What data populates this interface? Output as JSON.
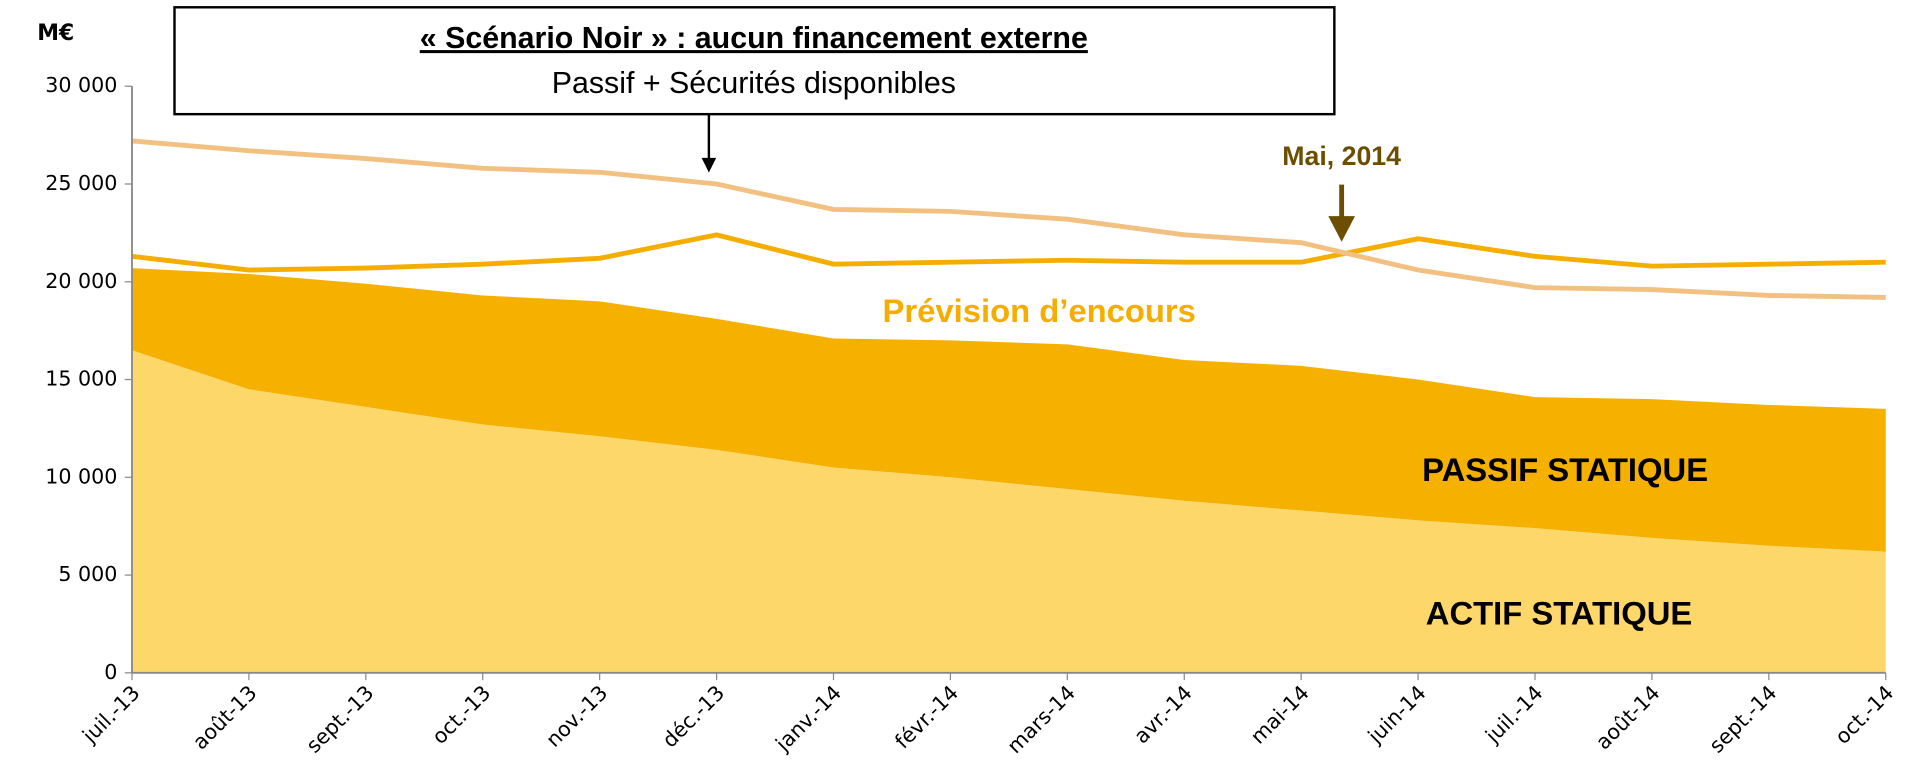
{
  "chart_data": {
    "type": "area",
    "title": "« Scénario  Noir » : aucun financement externe",
    "y_label": "M€",
    "categories": [
      "juil.-13",
      "août-13",
      "sept.-13",
      "oct.-13",
      "nov.-13",
      "déc.-13",
      "janv.-14",
      "févr.-14",
      "mars-14",
      "avr.-14",
      "mai-14",
      "juin-14",
      "juil.-14",
      "août-14",
      "sept.-14",
      "oct.-14"
    ],
    "stacked": true,
    "series": [
      {
        "name": "ACTIF STATIQUE",
        "type": "area",
        "color": "#fdd76a",
        "values": [
          16500,
          14500,
          13600,
          12700,
          12100,
          11400,
          10500,
          10000,
          9400,
          8800,
          8300,
          7800,
          7400,
          6900,
          6500,
          6200
        ]
      },
      {
        "name": "PASSIF STATIQUE",
        "type": "area",
        "color": "#f5b000",
        "values": [
          4200,
          5900,
          6300,
          6600,
          6900,
          6700,
          6600,
          7000,
          7400,
          7200,
          7400,
          7200,
          6700,
          7100,
          7200,
          7300
        ]
      },
      {
        "name": "Prévision d’encours",
        "type": "line",
        "color": "#f5ae00",
        "values": [
          21300,
          20600,
          20700,
          20900,
          21200,
          22400,
          20900,
          21000,
          21100,
          21000,
          21000,
          22200,
          21300,
          20800,
          20900,
          21000
        ]
      },
      {
        "name": "Passif + Sécurités disponibles",
        "type": "line",
        "color": "#f2c080",
        "values": [
          27200,
          26700,
          26300,
          25800,
          25600,
          25000,
          23700,
          23600,
          23200,
          22400,
          22000,
          20600,
          19700,
          19600,
          19300,
          19200
        ]
      }
    ],
    "annotations": [
      "Mai, 2014"
    ],
    "ylim": [
      0,
      30000
    ],
    "yticks": [
      0,
      {
        "value": 5000,
        "label": "5 000"
      },
      {
        "value": 10000,
        "label": "10 000"
      },
      {
        "value": 15000,
        "label": "15 000"
      },
      {
        "value": 20000,
        "label": "20 000"
      },
      {
        "value": 25000,
        "label": "25 000"
      },
      {
        "value": 30000,
        "label": "30 000"
      }
    ],
    "grid": false
  }
}
